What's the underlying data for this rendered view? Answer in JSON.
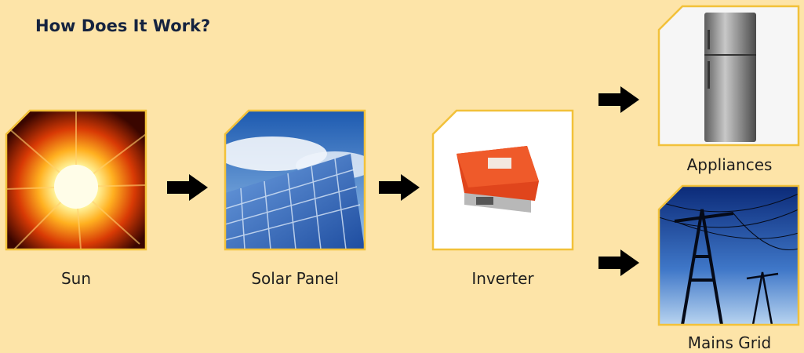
{
  "title": "How Does It Work?",
  "nodes": [
    {
      "label": "Sun"
    },
    {
      "label": "Solar Panel"
    },
    {
      "label": "Inverter"
    },
    {
      "label": "Appliances"
    },
    {
      "label": "Mains Grid"
    }
  ]
}
